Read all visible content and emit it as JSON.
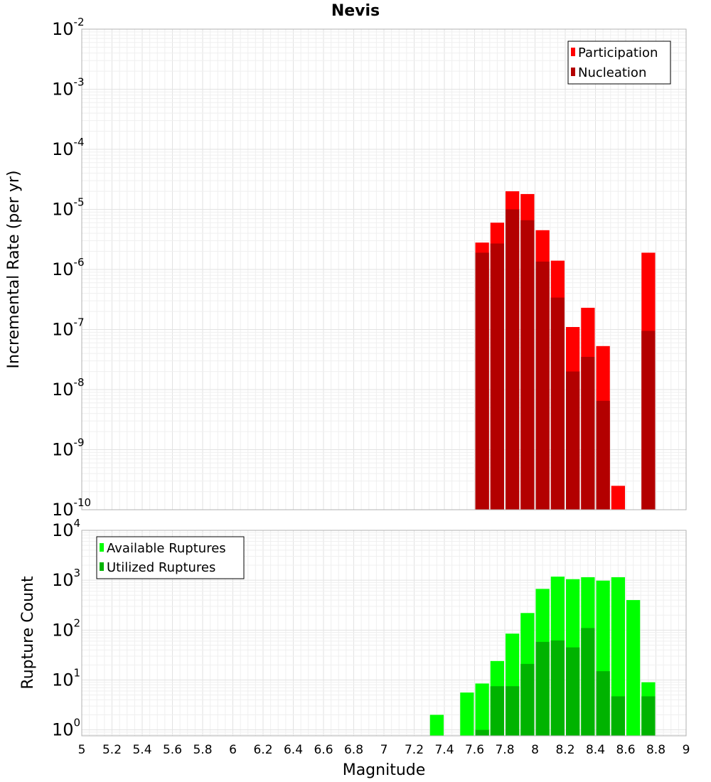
{
  "chart_data": [
    {
      "type": "bar",
      "title": "Nevis",
      "ylabel": "Incremental Rate (per yr)",
      "yscale": "log",
      "ylim": [
        1e-10,
        0.01
      ],
      "xlim": [
        5,
        9
      ],
      "grid": true,
      "legend_position": "top-right",
      "yticks": [
        {
          "base": "10",
          "exp": "-10"
        },
        {
          "base": "10",
          "exp": "-9"
        },
        {
          "base": "10",
          "exp": "-8"
        },
        {
          "base": "10",
          "exp": "-7"
        },
        {
          "base": "10",
          "exp": "-6"
        },
        {
          "base": "10",
          "exp": "-5"
        },
        {
          "base": "10",
          "exp": "-4"
        },
        {
          "base": "10",
          "exp": "-3"
        },
        {
          "base": "10",
          "exp": "-2"
        }
      ],
      "series": [
        {
          "name": "Participation",
          "color": "#ff0000",
          "points": [
            [
              7.65,
              2.8e-06
            ],
            [
              7.75,
              6e-06
            ],
            [
              7.85,
              2e-05
            ],
            [
              7.95,
              1.8e-05
            ],
            [
              8.05,
              4.5e-06
            ],
            [
              8.15,
              1.4e-06
            ],
            [
              8.25,
              1.1e-07
            ],
            [
              8.35,
              2.3e-07
            ],
            [
              8.45,
              5.3e-08
            ],
            [
              8.55,
              2.5e-10
            ],
            [
              8.75,
              1.9e-06
            ]
          ]
        },
        {
          "name": "Nucleation",
          "color": "#b30000",
          "points": [
            [
              7.65,
              1.9e-06
            ],
            [
              7.75,
              2.7e-06
            ],
            [
              7.85,
              1e-05
            ],
            [
              7.95,
              6.6e-06
            ],
            [
              8.05,
              1.35e-06
            ],
            [
              8.15,
              3.4e-07
            ],
            [
              8.25,
              2e-08
            ],
            [
              8.35,
              3.5e-08
            ],
            [
              8.45,
              6.5e-09
            ],
            [
              8.75,
              9.5e-08
            ]
          ]
        }
      ]
    },
    {
      "type": "bar",
      "xlabel": "Magnitude",
      "ylabel": "Rupture Count",
      "yscale": "log",
      "ylim": [
        0.76,
        10000
      ],
      "xlim": [
        5,
        9
      ],
      "grid": true,
      "legend_position": "top-left",
      "xticks": [
        "5",
        "5.2",
        "5.4",
        "5.6",
        "5.8",
        "6",
        "6.2",
        "6.4",
        "6.6",
        "6.8",
        "7",
        "7.2",
        "7.4",
        "7.6",
        "7.8",
        "8",
        "8.2",
        "8.4",
        "8.6",
        "8.8",
        "9"
      ],
      "yticks": [
        {
          "base": "10",
          "exp": "0"
        },
        {
          "base": "10",
          "exp": "1"
        },
        {
          "base": "10",
          "exp": "2"
        },
        {
          "base": "10",
          "exp": "3"
        },
        {
          "base": "10",
          "exp": "4"
        }
      ],
      "series": [
        {
          "name": "Available Ruptures",
          "color": "#00ff00",
          "points": [
            [
              7.35,
              2
            ],
            [
              7.55,
              5.6
            ],
            [
              7.65,
              8.5
            ],
            [
              7.75,
              24
            ],
            [
              7.85,
              85
            ],
            [
              7.95,
              220
            ],
            [
              8.05,
              670
            ],
            [
              8.15,
              1180
            ],
            [
              8.25,
              1050
            ],
            [
              8.35,
              1150
            ],
            [
              8.45,
              980
            ],
            [
              8.55,
              1150
            ],
            [
              8.65,
              400
            ],
            [
              8.75,
              9
            ]
          ]
        },
        {
          "name": "Utilized Ruptures",
          "color": "#00b300",
          "points": [
            [
              7.65,
              1
            ],
            [
              7.75,
              7.5
            ],
            [
              7.85,
              7.5
            ],
            [
              7.95,
              21
            ],
            [
              8.05,
              58
            ],
            [
              8.15,
              62
            ],
            [
              8.25,
              45
            ],
            [
              8.35,
              110
            ],
            [
              8.45,
              15
            ],
            [
              8.55,
              4.7
            ],
            [
              8.75,
              4.7
            ]
          ]
        }
      ]
    }
  ]
}
